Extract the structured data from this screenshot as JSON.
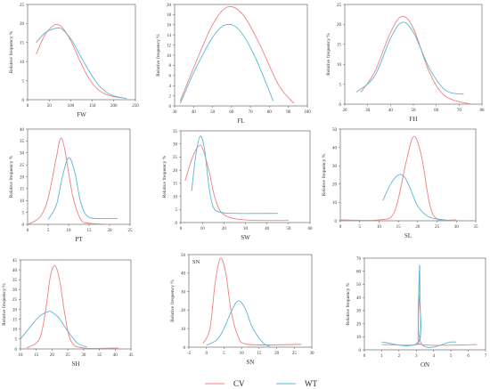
{
  "colors": {
    "CV": "#f08080",
    "WT": "#5ab6d6",
    "axis": "#555555"
  },
  "legend": {
    "items": [
      {
        "key": "CV",
        "label": "CV"
      },
      {
        "key": "WT",
        "label": "WT"
      }
    ]
  },
  "chart_data": [
    {
      "id": "FW",
      "type": "line",
      "xlabel": "FW",
      "ylabel": "Relative frequency %",
      "xlim": [
        0,
        250
      ],
      "ylim": [
        0,
        25
      ],
      "xticks": [
        0,
        50,
        100,
        150,
        200,
        250
      ],
      "yticks": [
        0,
        5,
        10,
        15,
        20,
        25
      ],
      "series": [
        {
          "name": "CV",
          "x": [
            20,
            40,
            60,
            70,
            80,
            100,
            120,
            140,
            160,
            180,
            200,
            220
          ],
          "y": [
            12,
            17,
            19.5,
            19.7,
            19,
            15.5,
            10.5,
            6,
            3,
            1.5,
            0.8,
            0.5
          ]
        },
        {
          "name": "WT",
          "x": [
            20,
            40,
            60,
            70,
            80,
            100,
            120,
            140,
            160,
            180,
            200,
            230
          ],
          "y": [
            15,
            17.5,
            18.6,
            18.8,
            18.5,
            16,
            12,
            8,
            4.5,
            2.2,
            1,
            0.3
          ]
        }
      ]
    },
    {
      "id": "FL",
      "type": "line",
      "xlabel": "FL",
      "ylabel": "Relative frequency %",
      "xlim": [
        30,
        100
      ],
      "ylim": [
        0,
        20
      ],
      "xticks": [
        30,
        40,
        50,
        60,
        70,
        80,
        90,
        100
      ],
      "yticks": [
        0,
        2,
        4,
        6,
        8,
        10,
        12,
        14,
        16,
        18,
        20
      ],
      "series": [
        {
          "name": "CV",
          "x": [
            33,
            40,
            50,
            58,
            66,
            75,
            85,
            93
          ],
          "y": [
            1,
            7.5,
            16,
            19.5,
            18,
            12,
            4,
            0.5
          ]
        },
        {
          "name": "WT",
          "x": [
            33,
            40,
            50,
            57,
            64,
            72,
            82
          ],
          "y": [
            0.5,
            6.5,
            13.5,
            16,
            15,
            10,
            1
          ]
        }
      ]
    },
    {
      "id": "FH",
      "type": "line",
      "xlabel": "FH",
      "ylabel": "Relative frequency %",
      "xlim": [
        20,
        80
      ],
      "ylim": [
        0,
        25
      ],
      "xticks": [
        20,
        30,
        40,
        50,
        60,
        70,
        80
      ],
      "yticks": [
        0,
        5,
        10,
        15,
        20,
        25
      ],
      "series": [
        {
          "name": "CV",
          "x": [
            27,
            33,
            40,
            45,
            50,
            57,
            64,
            75
          ],
          "y": [
            3,
            8,
            18,
            22,
            19,
            8,
            2,
            0
          ]
        },
        {
          "name": "WT",
          "x": [
            25,
            33,
            40,
            45,
            50,
            57,
            64,
            72
          ],
          "y": [
            3,
            7,
            16.5,
            20.5,
            18,
            9,
            3.5,
            2.5
          ]
        }
      ]
    },
    {
      "id": "PT",
      "type": "line",
      "xlabel": "PT",
      "ylabel": "Relative frequency %",
      "xlim": [
        0,
        25
      ],
      "ylim": [
        0,
        40
      ],
      "xticks": [
        0,
        5,
        10,
        15,
        20,
        25
      ],
      "yticks": [
        0,
        5,
        10,
        15,
        20,
        25,
        30,
        35,
        40
      ],
      "series": [
        {
          "name": "CV",
          "x": [
            0,
            3,
            5,
            7,
            8,
            9,
            11,
            13,
            15,
            20
          ],
          "y": [
            0,
            3,
            11,
            28,
            36,
            32,
            12,
            2,
            0.5,
            0
          ]
        },
        {
          "name": "WT",
          "x": [
            5,
            7,
            8.5,
            10,
            11.5,
            13,
            15,
            20,
            22
          ],
          "y": [
            2,
            8,
            20,
            28,
            22,
            9,
            3,
            2.5,
            2.5
          ]
        }
      ]
    },
    {
      "id": "SW",
      "type": "line",
      "xlabel": "SW",
      "ylabel": "Relative frequency %",
      "xlim": [
        0,
        60
      ],
      "ylim": [
        0,
        35
      ],
      "xticks": [
        0,
        10,
        20,
        30,
        40,
        50,
        60
      ],
      "yticks": [
        0,
        5,
        10,
        15,
        20,
        25,
        30,
        35
      ],
      "series": [
        {
          "name": "CV",
          "x": [
            2,
            5,
            8,
            10,
            13,
            16,
            20,
            30,
            50
          ],
          "y": [
            16,
            24,
            29,
            28.5,
            20,
            9,
            3,
            1,
            0.8
          ]
        },
        {
          "name": "WT",
          "x": [
            5,
            7,
            9,
            11,
            13,
            15,
            18,
            25,
            45
          ],
          "y": [
            12,
            26,
            33,
            28,
            14,
            6,
            4,
            3.5,
            3.5
          ]
        }
      ]
    },
    {
      "id": "SL",
      "type": "line",
      "xlabel": "SL",
      "ylabel": "Relative frequency %",
      "xlim": [
        0,
        35
      ],
      "ylim": [
        0,
        50
      ],
      "xticks": [
        0,
        5,
        10,
        15,
        20,
        25,
        30,
        35
      ],
      "yticks": [
        0,
        10,
        20,
        30,
        40,
        50
      ],
      "series": [
        {
          "name": "CV",
          "x": [
            0,
            10,
            14,
            17,
            19,
            21,
            23,
            25,
            30
          ],
          "y": [
            0.5,
            0.5,
            5,
            32,
            46,
            35,
            10,
            1,
            0.5
          ]
        },
        {
          "name": "WT",
          "x": [
            11,
            13,
            15,
            16.5,
            18,
            20,
            23,
            27,
            30
          ],
          "y": [
            11,
            20,
            25,
            24,
            18,
            8,
            2,
            0.5,
            0
          ]
        }
      ]
    },
    {
      "id": "SH",
      "type": "line",
      "xlabel": "SH",
      "ylabel": "Relative frequency %",
      "xlim": [
        10,
        45
      ],
      "ylim": [
        0,
        45
      ],
      "xticks": [
        10,
        15,
        20,
        25,
        30,
        35,
        40,
        45
      ],
      "yticks": [
        0,
        5,
        10,
        15,
        20,
        25,
        30,
        35,
        40,
        45
      ],
      "series": [
        {
          "name": "CV",
          "x": [
            12,
            16,
            18,
            19.5,
            21,
            22.5,
            24,
            26,
            30,
            41
          ],
          "y": [
            0.5,
            5,
            20,
            37,
            42,
            34,
            18,
            4,
            0.5,
            0.5
          ]
        },
        {
          "name": "WT",
          "x": [
            10,
            13,
            16,
            19,
            20,
            22,
            25,
            28,
            31
          ],
          "y": [
            5,
            11,
            16.5,
            19,
            18.5,
            16,
            9,
            3,
            1
          ]
        }
      ]
    },
    {
      "id": "SN",
      "type": "line",
      "xlabel": "SN",
      "ylabel": "Relative frequency %",
      "annotation": "SN",
      "xlim": [
        -5,
        30
      ],
      "ylim": [
        0,
        50
      ],
      "xticks": [
        -5,
        0,
        5,
        10,
        15,
        20,
        25,
        30
      ],
      "yticks": [
        0,
        10,
        20,
        30,
        40,
        50
      ],
      "series": [
        {
          "name": "CV",
          "x": [
            -1,
            1,
            2.5,
            4,
            5.5,
            7,
            9,
            12,
            27
          ],
          "y": [
            2,
            10,
            35,
            48,
            40,
            20,
            6,
            1.5,
            1.5
          ]
        },
        {
          "name": "WT",
          "x": [
            0,
            3,
            5,
            7,
            9,
            11,
            13,
            16,
            18
          ],
          "y": [
            1,
            4,
            10,
            19,
            25,
            21,
            11,
            2.5,
            0.5
          ]
        }
      ]
    },
    {
      "id": "ON",
      "type": "line",
      "xlabel": "ON",
      "ylabel": "Relative frequency %",
      "xlim": [
        0,
        7
      ],
      "ylim": [
        0,
        70
      ],
      "xticks": [
        0,
        1,
        2,
        3,
        4,
        5,
        6,
        7
      ],
      "yticks": [
        0,
        10,
        20,
        30,
        40,
        50,
        60,
        70
      ],
      "series": [
        {
          "name": "CV",
          "x": [
            1,
            3.05,
            3.1,
            3.15,
            3.2,
            3.25,
            3.3,
            6.5
          ],
          "y": [
            4,
            4,
            10,
            50,
            58,
            12,
            4,
            4
          ]
        },
        {
          "name": "WT",
          "x": [
            1,
            3.1,
            3.15,
            3.2,
            3.25,
            5,
            5.3
          ],
          "y": [
            6,
            6,
            45,
            63,
            6,
            6,
            6
          ]
        }
      ]
    }
  ]
}
